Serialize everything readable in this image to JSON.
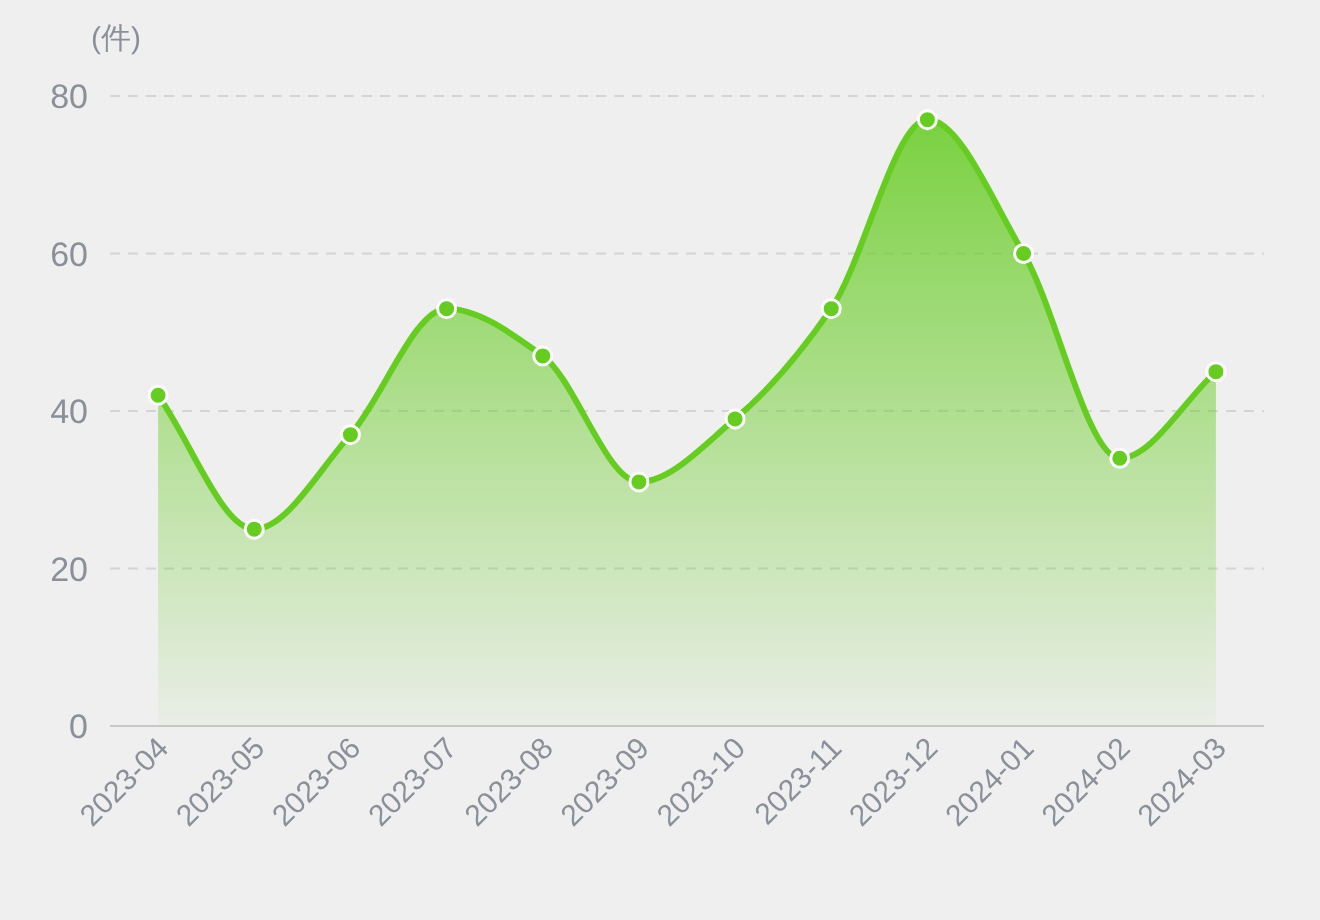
{
  "chart_data": {
    "type": "area",
    "ylabel": "(件)",
    "categories": [
      "2023-04",
      "2023-05",
      "2023-06",
      "2023-07",
      "2023-08",
      "2023-09",
      "2023-10",
      "2023-11",
      "2023-12",
      "2024-01",
      "2024-02",
      "2024-03"
    ],
    "series": [
      {
        "color": "#66cc22",
        "values": [
          42,
          25,
          37,
          53,
          47,
          31,
          39,
          53,
          77,
          60,
          34,
          45
        ]
      }
    ],
    "ylim": [
      0,
      80
    ],
    "yticks": [
      0,
      20,
      40,
      60,
      80
    ],
    "grid": "y",
    "marker": "circle",
    "line_style": "solid"
  }
}
